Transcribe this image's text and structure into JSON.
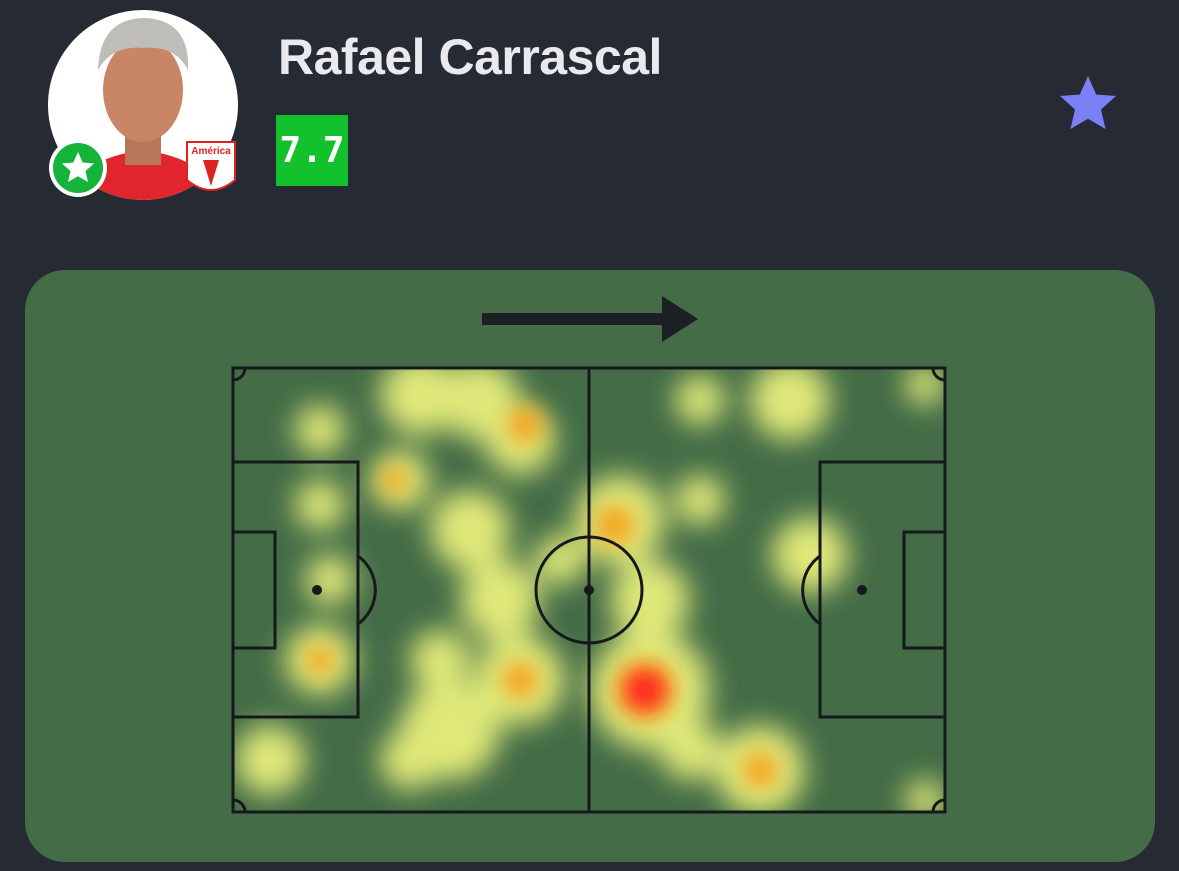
{
  "player": {
    "name": "Rafael Carrascal",
    "rating": "7.7",
    "club": "América"
  }
}
